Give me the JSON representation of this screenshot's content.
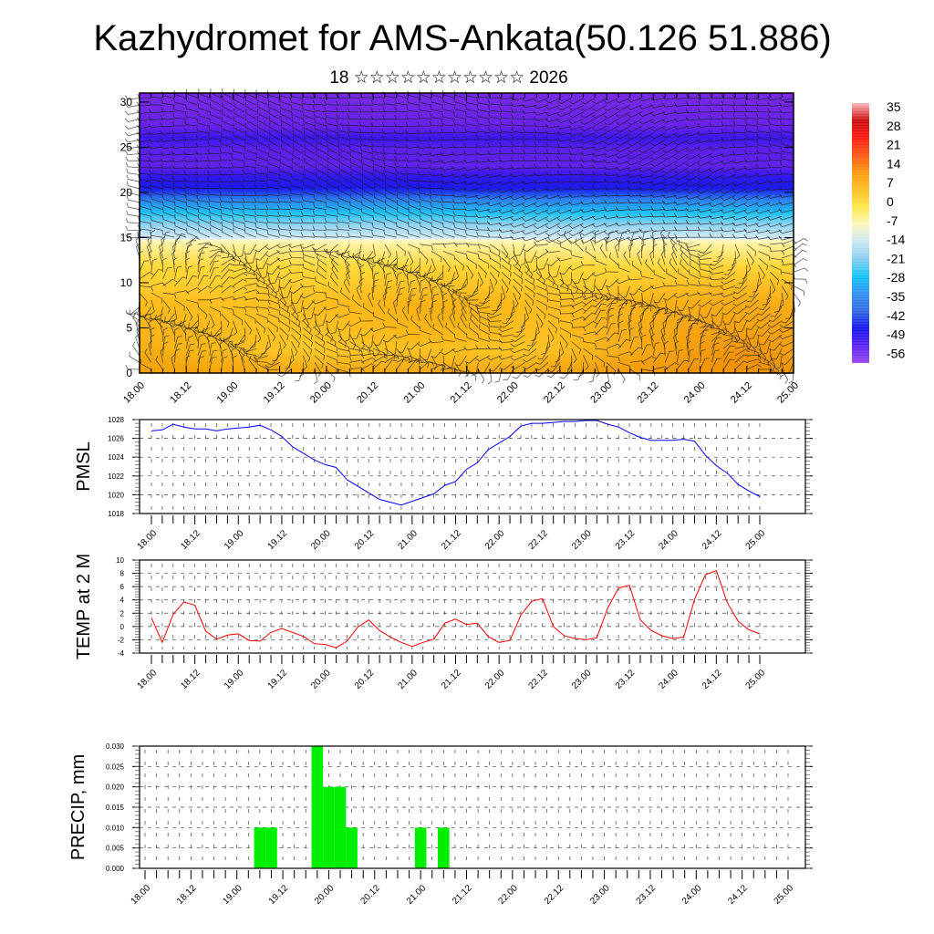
{
  "title": "Kazhydromet for AMS-Ankata(50.126 51.886)",
  "subtitle": "18 ☆☆☆☆☆☆☆☆☆☆☆ 2026",
  "chart_data": [
    {
      "type": "heatmap",
      "name": "cross-section",
      "title": "",
      "ylabel": "",
      "ylim": [
        0,
        31
      ],
      "yticks": [
        0,
        5,
        10,
        15,
        20,
        25,
        30
      ],
      "x_tick_labels": [
        "18.00",
        "18.12",
        "19.00",
        "19.12",
        "20.00",
        "20.12",
        "21.00",
        "21.12",
        "22.00",
        "22.12",
        "23.00",
        "23.12",
        "24.00",
        "24.12",
        "25.00"
      ],
      "overlay": "wind barbs",
      "colorbar": {
        "labels": [
          "35",
          "28",
          "21",
          "14",
          "7",
          "0",
          "-7",
          "-14",
          "-21",
          "-28",
          "-35",
          "-42",
          "-49",
          "-56"
        ],
        "colors": [
          "#ffb8b8",
          "#c80a0a",
          "#ff1a10",
          "#ff5510",
          "#ff9a10",
          "#ffbf20",
          "#ffe84a",
          "#fff8c0",
          "#c8e6f5",
          "#88cdf0",
          "#10c4f8",
          "#3090f0",
          "#3068e0",
          "#1414f0",
          "#5a22f0",
          "#9a48f0"
        ]
      }
    },
    {
      "type": "line",
      "name": "pmsl",
      "ylabel": "PMSL",
      "ylim": [
        1018,
        1028
      ],
      "yticks": [
        1018,
        1020,
        1022,
        1024,
        1026,
        1028
      ],
      "color": "#0000ff",
      "x_step_hours": 3,
      "x_tick_labels": [
        "18.00",
        "18.12",
        "19.00",
        "19.12",
        "20.00",
        "20.12",
        "21.00",
        "21.12",
        "22.00",
        "22.12",
        "23.00",
        "23.12",
        "24.00",
        "24.12",
        "25.00"
      ],
      "values": [
        1026.8,
        1026.9,
        1027.5,
        1027.2,
        1027.0,
        1027.0,
        1026.8,
        1027.0,
        1027.1,
        1027.2,
        1027.4,
        1026.9,
        1026.2,
        1025.1,
        1024.4,
        1023.7,
        1023.2,
        1022.9,
        1021.6,
        1020.9,
        1020.2,
        1019.5,
        1019.2,
        1018.9,
        1019.3,
        1019.7,
        1020.1,
        1021.0,
        1021.4,
        1022.7,
        1023.4,
        1024.8,
        1025.5,
        1026.2,
        1027.3,
        1027.6,
        1027.6,
        1027.7,
        1027.8,
        1027.8,
        1027.9,
        1027.9,
        1027.5,
        1027.2,
        1026.6,
        1026.1,
        1025.8,
        1025.8,
        1025.8,
        1025.9,
        1025.7,
        1024.2,
        1023.1,
        1022.3,
        1021.1,
        1020.4,
        1019.8
      ]
    },
    {
      "type": "line",
      "name": "temp",
      "ylabel": "TEMP at 2 M",
      "ylim": [
        -4,
        10
      ],
      "yticks": [
        -4,
        -2,
        0,
        2,
        4,
        6,
        8,
        10
      ],
      "color": "#ff0000",
      "x_step_hours": 3,
      "x_tick_labels": [
        "18.00",
        "18.12",
        "19.00",
        "19.12",
        "20.00",
        "20.12",
        "21.00",
        "21.12",
        "22.00",
        "22.12",
        "23.00",
        "23.12",
        "24.00",
        "24.12",
        "25.00"
      ],
      "values": [
        1.3,
        -2.4,
        1.8,
        3.7,
        3.2,
        -0.7,
        -1.9,
        -1.3,
        -1.1,
        -2.1,
        -2.2,
        -0.9,
        -0.3,
        -0.9,
        -1.5,
        -2.6,
        -2.7,
        -3.2,
        -2.2,
        -0.1,
        1.0,
        -0.6,
        -1.6,
        -2.4,
        -3.0,
        -2.4,
        -1.9,
        0.5,
        1.1,
        0.3,
        0.5,
        -1.5,
        -2.4,
        -2.1,
        1.7,
        3.8,
        4.2,
        0.0,
        -1.4,
        -1.8,
        -2.0,
        -1.7,
        2.8,
        5.8,
        6.2,
        1.0,
        -0.6,
        -1.4,
        -1.8,
        -1.6,
        4.1,
        7.8,
        8.4,
        3.6,
        0.8,
        -0.5,
        -1.1
      ]
    },
    {
      "type": "bar",
      "name": "precip",
      "ylabel": "PRECIP, mm",
      "ylim": [
        0,
        0.03
      ],
      "yticks": [
        "0.000",
        "0.005",
        "0.010",
        "0.015",
        "0.020",
        "0.025",
        "0.030"
      ],
      "color": "#00ee00",
      "x_step_hours": 3,
      "x_tick_labels": [
        "18.00",
        "18.12",
        "19.00",
        "19.12",
        "20.00",
        "20.12",
        "21.00",
        "21.12",
        "22.00",
        "22.12",
        "23.00",
        "23.12",
        "24.00",
        "24.12",
        "25.00"
      ],
      "values": [
        0,
        0,
        0,
        0,
        0,
        0,
        0,
        0,
        0,
        0,
        0.01,
        0.01,
        0,
        0,
        0,
        0.03,
        0.02,
        0.02,
        0.01,
        0,
        0,
        0,
        0,
        0,
        0.01,
        0,
        0.01,
        0,
        0,
        0,
        0,
        0,
        0,
        0,
        0,
        0,
        0,
        0,
        0,
        0,
        0,
        0,
        0,
        0,
        0,
        0,
        0,
        0,
        0,
        0,
        0,
        0,
        0,
        0,
        0,
        0,
        0
      ]
    }
  ]
}
